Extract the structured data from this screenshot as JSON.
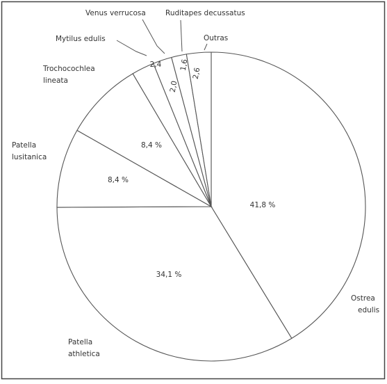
{
  "colors": {
    "line": "#555555",
    "text": "#333333",
    "border": "#444444"
  },
  "chart_data": {
    "type": "pie",
    "title": "",
    "slices": [
      {
        "label": "Ostrea edulis",
        "value": 41.8,
        "value_label": "41,8 %"
      },
      {
        "label": "Patella athletica",
        "value": 34.1,
        "value_label": "34,1 %"
      },
      {
        "label": "Patella lusitanica",
        "value": 8.4,
        "value_label": "8,4 %"
      },
      {
        "label": "Trochocochlea lineata",
        "value": 8.4,
        "value_label": "8,4 %"
      },
      {
        "label": "Mytilus edulis",
        "value": 2.4,
        "value_label": "2,4"
      },
      {
        "label": "Venus verrucosa",
        "value": 2.0,
        "value_label": "2,0"
      },
      {
        "label": "Ruditapes decussatus",
        "value": 1.6,
        "value_label": "1,6"
      },
      {
        "label": "Outras",
        "value": 2.6,
        "value_label": "2,6"
      }
    ],
    "legend": "none"
  }
}
